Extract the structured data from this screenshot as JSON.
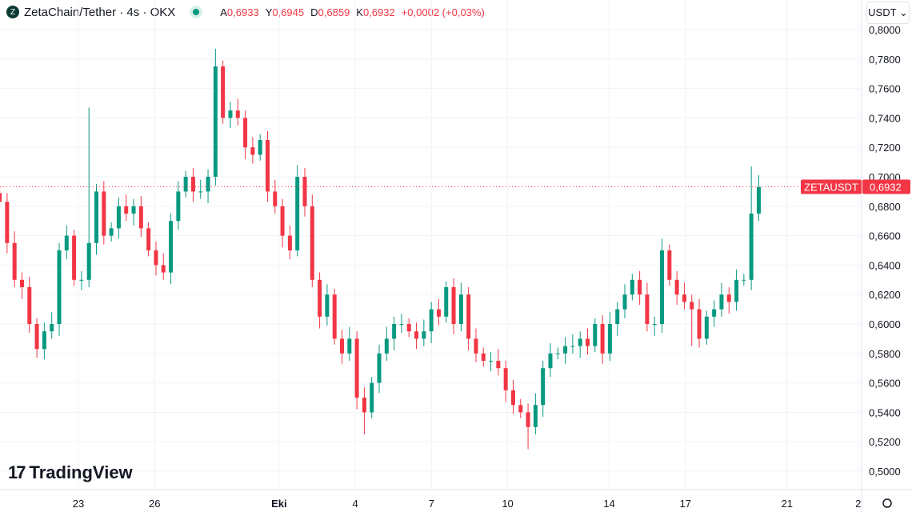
{
  "header": {
    "title": "ZetaChain/Tether · 4s · OKX",
    "logo_letter": "Z",
    "open_label": "A",
    "open": "0,6933",
    "high_label": "Y",
    "high": "0,6945",
    "low_label": "D",
    "low": "0,6859",
    "close_label": "K",
    "close": "0,6932",
    "change": "+0,0002 (+0,03%)"
  },
  "currency_select": "USDT ⌄",
  "branding": "TradingView",
  "colors": {
    "up": "#089981",
    "down": "#f23645",
    "grid": "#f0f3fa"
  },
  "chart_data": {
    "type": "candlestick",
    "symbol": "ZETAUSDT",
    "last_price": "0,6932",
    "ylim": [
      0.5,
      0.8
    ],
    "y_ticks": [
      "0,8000",
      "0,7800",
      "0,7600",
      "0,7400",
      "0,7200",
      "0,7000",
      "0,6800",
      "0,6600",
      "0,6400",
      "0,6200",
      "0,6000",
      "0,5800",
      "0,5600",
      "0,5400",
      "0,5200",
      "0,5000"
    ],
    "x_ticks": [
      {
        "label": "23",
        "day": 0
      },
      {
        "label": "26",
        "day": 3
      },
      {
        "label": "Eki",
        "day": 7.9
      },
      {
        "label": "4",
        "day": 10.9
      },
      {
        "label": "7",
        "day": 13.9
      },
      {
        "label": "10",
        "day": 16.9
      },
      {
        "label": "14",
        "day": 20.9
      },
      {
        "label": "17",
        "day": 23.9
      },
      {
        "label": "21",
        "day": 27.9
      },
      {
        "label": "2",
        "day": 30.7
      }
    ],
    "first_candle_day": -3.1,
    "candle_days": 0.293,
    "closes": [
      0.683,
      0.655,
      0.63,
      0.625,
      0.6,
      0.583,
      0.595,
      0.6,
      0.65,
      0.66,
      0.63,
      0.63,
      0.655,
      0.69,
      0.66,
      0.665,
      0.68,
      0.675,
      0.68,
      0.665,
      0.65,
      0.64,
      0.635,
      0.67,
      0.69,
      0.7,
      0.69,
      0.69,
      0.7,
      0.775,
      0.74,
      0.745,
      0.74,
      0.72,
      0.715,
      0.725,
      0.69,
      0.68,
      0.66,
      0.65,
      0.7,
      0.68,
      0.63,
      0.605,
      0.62,
      0.59,
      0.58,
      0.59,
      0.55,
      0.54,
      0.56,
      0.58,
      0.59,
      0.6,
      0.6,
      0.595,
      0.59,
      0.595,
      0.61,
      0.605,
      0.625,
      0.6,
      0.62,
      0.59,
      0.58,
      0.575,
      0.575,
      0.57,
      0.555,
      0.545,
      0.54,
      0.53,
      0.545,
      0.57,
      0.58,
      0.58,
      0.585,
      0.585,
      0.59,
      0.585,
      0.6,
      0.58,
      0.6,
      0.61,
      0.62,
      0.63,
      0.62,
      0.6,
      0.6,
      0.65,
      0.63,
      0.62,
      0.615,
      0.61,
      0.59,
      0.605,
      0.61,
      0.62,
      0.615,
      0.63,
      0.63,
      0.675,
      0.6932
    ],
    "spike_highs": {
      "12": 0.747,
      "29": 0.787,
      "40": 0.708,
      "89": 0.658,
      "101": 0.707
    },
    "spike_lows": {
      "5": 0.577,
      "49": 0.525,
      "71": 0.515,
      "93": 0.585
    }
  }
}
